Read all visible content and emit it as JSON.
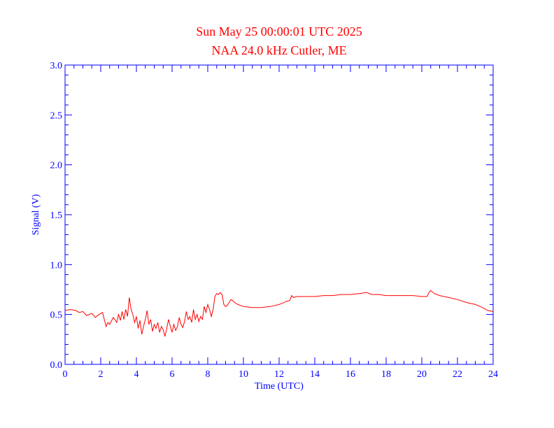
{
  "chart_data": {
    "type": "line",
    "title": "Sun May 25 00:00:01 UTC 2025",
    "subtitle": "NAA 24.0 kHz Cutler, ME",
    "xlabel": "Time (UTC)",
    "ylabel": "Signal (V)",
    "xlim": [
      0,
      24
    ],
    "ylim": [
      0.0,
      3.0
    ],
    "x_ticks": [
      0,
      2,
      4,
      6,
      8,
      10,
      12,
      14,
      16,
      18,
      20,
      22,
      24
    ],
    "x_tick_labels": [
      "0",
      "2",
      "4",
      "6",
      "8",
      "10",
      "12",
      "14",
      "16",
      "18",
      "20",
      "22",
      "24"
    ],
    "y_ticks": [
      0.0,
      0.5,
      1.0,
      1.5,
      2.0,
      2.5,
      3.0
    ],
    "y_tick_labels": [
      "0.0",
      "0.5",
      "1.0",
      "1.5",
      "2.0",
      "2.5",
      "3.0"
    ],
    "grid": false,
    "colors": {
      "trace": "#ff0000",
      "axes": "#0000ff",
      "title": "#ff0000"
    },
    "series": [
      {
        "x": [
          0,
          0.3,
          0.6,
          0.8,
          1.0,
          1.2,
          1.5,
          1.7,
          1.9,
          2.1,
          2.2,
          2.3,
          2.4,
          2.5,
          2.7,
          2.9,
          3.0,
          3.1,
          3.2,
          3.3,
          3.4,
          3.5,
          3.6,
          3.7,
          3.8,
          3.9,
          4.0,
          4.1,
          4.2,
          4.3,
          4.4,
          4.5,
          4.6,
          4.7,
          4.8,
          4.9,
          5.0,
          5.1,
          5.2,
          5.3,
          5.4,
          5.5,
          5.6,
          5.7,
          5.8,
          5.9,
          6.0,
          6.1,
          6.2,
          6.3,
          6.4,
          6.5,
          6.6,
          6.7,
          6.8,
          6.9,
          7.0,
          7.1,
          7.2,
          7.3,
          7.4,
          7.5,
          7.6,
          7.7,
          7.8,
          7.9,
          8.0,
          8.1,
          8.2,
          8.3,
          8.4,
          8.5,
          8.6,
          8.7,
          8.8,
          8.9,
          9.0,
          9.1,
          9.2,
          9.3,
          9.4,
          9.5,
          9.7,
          10.0,
          10.5,
          11.0,
          11.5,
          12.0,
          12.4,
          12.6,
          12.7,
          12.8,
          13.0,
          13.5,
          14.0,
          14.5,
          15.0,
          15.5,
          16.0,
          16.5,
          16.9,
          17.2,
          17.6,
          18.0,
          18.5,
          19.0,
          19.5,
          20.0,
          20.3,
          20.4,
          20.5,
          20.7,
          21.0,
          21.5,
          22.0,
          22.5,
          23.0,
          23.4,
          23.7,
          24.0
        ],
        "y": [
          0.54,
          0.55,
          0.54,
          0.52,
          0.53,
          0.49,
          0.51,
          0.47,
          0.5,
          0.52,
          0.45,
          0.38,
          0.42,
          0.4,
          0.47,
          0.42,
          0.5,
          0.44,
          0.53,
          0.45,
          0.55,
          0.48,
          0.67,
          0.55,
          0.5,
          0.42,
          0.48,
          0.36,
          0.44,
          0.3,
          0.38,
          0.45,
          0.54,
          0.4,
          0.45,
          0.33,
          0.4,
          0.36,
          0.42,
          0.32,
          0.38,
          0.35,
          0.28,
          0.36,
          0.45,
          0.38,
          0.32,
          0.4,
          0.34,
          0.38,
          0.47,
          0.4,
          0.37,
          0.43,
          0.53,
          0.45,
          0.48,
          0.42,
          0.55,
          0.45,
          0.5,
          0.43,
          0.48,
          0.45,
          0.58,
          0.52,
          0.6,
          0.55,
          0.48,
          0.55,
          0.68,
          0.71,
          0.7,
          0.72,
          0.7,
          0.6,
          0.58,
          0.59,
          0.62,
          0.65,
          0.64,
          0.62,
          0.6,
          0.58,
          0.57,
          0.57,
          0.58,
          0.6,
          0.63,
          0.64,
          0.69,
          0.67,
          0.68,
          0.68,
          0.68,
          0.69,
          0.69,
          0.7,
          0.7,
          0.71,
          0.72,
          0.7,
          0.7,
          0.69,
          0.69,
          0.69,
          0.69,
          0.68,
          0.68,
          0.72,
          0.74,
          0.71,
          0.69,
          0.67,
          0.65,
          0.62,
          0.6,
          0.57,
          0.54,
          0.53
        ]
      }
    ]
  }
}
